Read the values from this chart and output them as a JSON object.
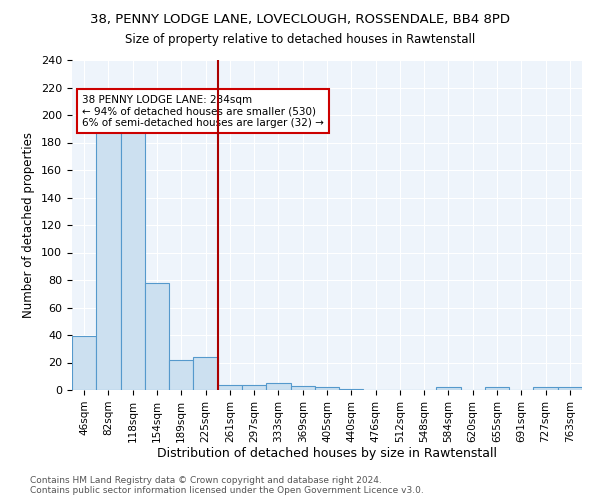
{
  "title1": "38, PENNY LODGE LANE, LOVECLOUGH, ROSSENDALE, BB4 8PD",
  "title2": "Size of property relative to detached houses in Rawtenstall",
  "xlabel": "Distribution of detached houses by size in Rawtenstall",
  "ylabel": "Number of detached properties",
  "bin_labels": [
    "46sqm",
    "82sqm",
    "118sqm",
    "154sqm",
    "189sqm",
    "225sqm",
    "261sqm",
    "297sqm",
    "333sqm",
    "369sqm",
    "405sqm",
    "440sqm",
    "476sqm",
    "512sqm",
    "548sqm",
    "584sqm",
    "620sqm",
    "655sqm",
    "691sqm",
    "727sqm",
    "763sqm"
  ],
  "bin_values": [
    39,
    197,
    190,
    78,
    22,
    24,
    4,
    4,
    5,
    3,
    2,
    1,
    0,
    0,
    0,
    2,
    0,
    2,
    0,
    2,
    2
  ],
  "bar_color": "#cce0f0",
  "bar_edge_color": "#5599cc",
  "vline_x": 5.5,
  "vline_color": "#aa0000",
  "annotation_title": "38 PENNY LODGE LANE: 234sqm",
  "annotation_line1": "← 94% of detached houses are smaller (530)",
  "annotation_line2": "6% of semi-detached houses are larger (32) →",
  "annotation_box_color": "#ffffff",
  "annotation_box_edge": "#cc0000",
  "footer1": "Contains HM Land Registry data © Crown copyright and database right 2024.",
  "footer2": "Contains public sector information licensed under the Open Government Licence v3.0.",
  "ylim": [
    0,
    240
  ],
  "yticks": [
    0,
    20,
    40,
    60,
    80,
    100,
    120,
    140,
    160,
    180,
    200,
    220,
    240
  ],
  "bg_color": "#eef4fb",
  "fig_bg": "#ffffff"
}
